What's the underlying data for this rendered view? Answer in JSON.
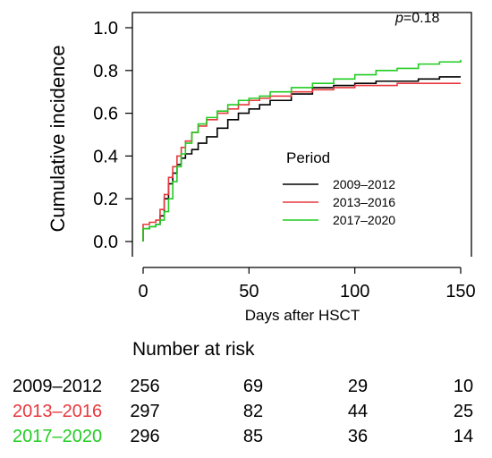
{
  "chart_data": {
    "type": "line",
    "step": true,
    "annotation": {
      "var": "p",
      "text": "=0.18"
    },
    "xlabel": "Days after HSCT",
    "ylabel": "Cumulative incidence",
    "xlim": [
      0,
      150
    ],
    "ylim": [
      0,
      1.0
    ],
    "x_ticks": [
      "0",
      "50",
      "100",
      "150"
    ],
    "y_ticks": [
      "0.0",
      "0.2",
      "0.4",
      "0.6",
      "0.8",
      "1.0"
    ],
    "grid": false,
    "legend": {
      "title": "Period",
      "position": "center-right"
    },
    "series": [
      {
        "name": "2009–2012",
        "color": "#000000",
        "points": [
          [
            0,
            0
          ],
          [
            0,
            0.06
          ],
          [
            3,
            0.07
          ],
          [
            6,
            0.08
          ],
          [
            8,
            0.12
          ],
          [
            10,
            0.2
          ],
          [
            12,
            0.27
          ],
          [
            14,
            0.32
          ],
          [
            16,
            0.36
          ],
          [
            18,
            0.39
          ],
          [
            20,
            0.41
          ],
          [
            23,
            0.43
          ],
          [
            26,
            0.46
          ],
          [
            30,
            0.49
          ],
          [
            35,
            0.53
          ],
          [
            40,
            0.57
          ],
          [
            45,
            0.6
          ],
          [
            50,
            0.62
          ],
          [
            55,
            0.64
          ],
          [
            60,
            0.66
          ],
          [
            70,
            0.69
          ],
          [
            80,
            0.72
          ],
          [
            90,
            0.73
          ],
          [
            100,
            0.74
          ],
          [
            110,
            0.75
          ],
          [
            120,
            0.75
          ],
          [
            130,
            0.76
          ],
          [
            140,
            0.77
          ],
          [
            150,
            0.77
          ]
        ]
      },
      {
        "name": "2013–2016",
        "color": "#e8383d",
        "points": [
          [
            0,
            0
          ],
          [
            0,
            0.08
          ],
          [
            3,
            0.09
          ],
          [
            6,
            0.1
          ],
          [
            8,
            0.15
          ],
          [
            10,
            0.22
          ],
          [
            12,
            0.3
          ],
          [
            14,
            0.35
          ],
          [
            16,
            0.4
          ],
          [
            18,
            0.44
          ],
          [
            20,
            0.47
          ],
          [
            23,
            0.51
          ],
          [
            26,
            0.54
          ],
          [
            30,
            0.57
          ],
          [
            35,
            0.6
          ],
          [
            40,
            0.62
          ],
          [
            45,
            0.64
          ],
          [
            50,
            0.66
          ],
          [
            55,
            0.67
          ],
          [
            60,
            0.68
          ],
          [
            70,
            0.7
          ],
          [
            80,
            0.71
          ],
          [
            90,
            0.72
          ],
          [
            100,
            0.73
          ],
          [
            110,
            0.73
          ],
          [
            120,
            0.74
          ],
          [
            130,
            0.74
          ],
          [
            140,
            0.74
          ],
          [
            150,
            0.74
          ]
        ]
      },
      {
        "name": "2017–2020",
        "color": "#22cc22",
        "points": [
          [
            0,
            0
          ],
          [
            0,
            0.06
          ],
          [
            3,
            0.07
          ],
          [
            6,
            0.08
          ],
          [
            8,
            0.1
          ],
          [
            10,
            0.14
          ],
          [
            12,
            0.2
          ],
          [
            14,
            0.28
          ],
          [
            16,
            0.35
          ],
          [
            18,
            0.41
          ],
          [
            20,
            0.46
          ],
          [
            23,
            0.51
          ],
          [
            26,
            0.55
          ],
          [
            30,
            0.58
          ],
          [
            35,
            0.61
          ],
          [
            40,
            0.64
          ],
          [
            45,
            0.66
          ],
          [
            50,
            0.67
          ],
          [
            55,
            0.68
          ],
          [
            60,
            0.7
          ],
          [
            70,
            0.72
          ],
          [
            80,
            0.74
          ],
          [
            90,
            0.76
          ],
          [
            100,
            0.78
          ],
          [
            110,
            0.8
          ],
          [
            120,
            0.81
          ],
          [
            130,
            0.83
          ],
          [
            140,
            0.84
          ],
          [
            150,
            0.85
          ]
        ]
      }
    ]
  },
  "risk_table": {
    "title": "Number at risk",
    "rows": [
      {
        "label": "2009–2012",
        "color": "#000000",
        "values": [
          "256",
          "69",
          "29",
          "10"
        ]
      },
      {
        "label": "2013–2016",
        "color": "#e8383d",
        "values": [
          "297",
          "82",
          "44",
          "25"
        ]
      },
      {
        "label": "2017–2020",
        "color": "#22cc22",
        "values": [
          "296",
          "85",
          "36",
          "14"
        ]
      }
    ]
  }
}
